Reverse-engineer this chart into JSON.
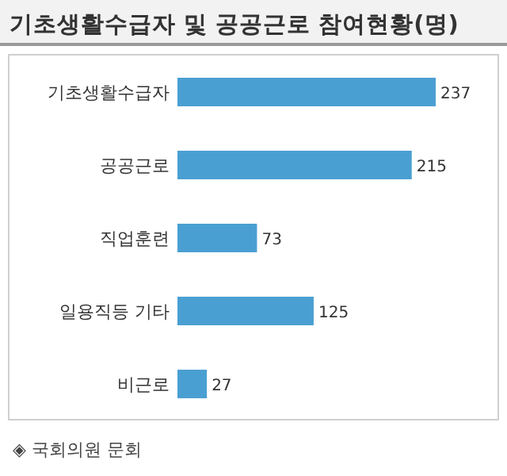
{
  "chart_data": {
    "type": "bar",
    "orientation": "horizontal",
    "title": "기초생활수급자 및 공공근로 참여현황(명)",
    "categories": [
      "기초생활수급자",
      "공공근로",
      "직업훈련",
      "일용직등 기타",
      "비근로"
    ],
    "values": [
      237,
      215,
      73,
      125,
      27
    ],
    "color": "#4a9fd2",
    "data_labels": true,
    "annotations": [
      "◈ 국회의원 문회"
    ]
  }
}
